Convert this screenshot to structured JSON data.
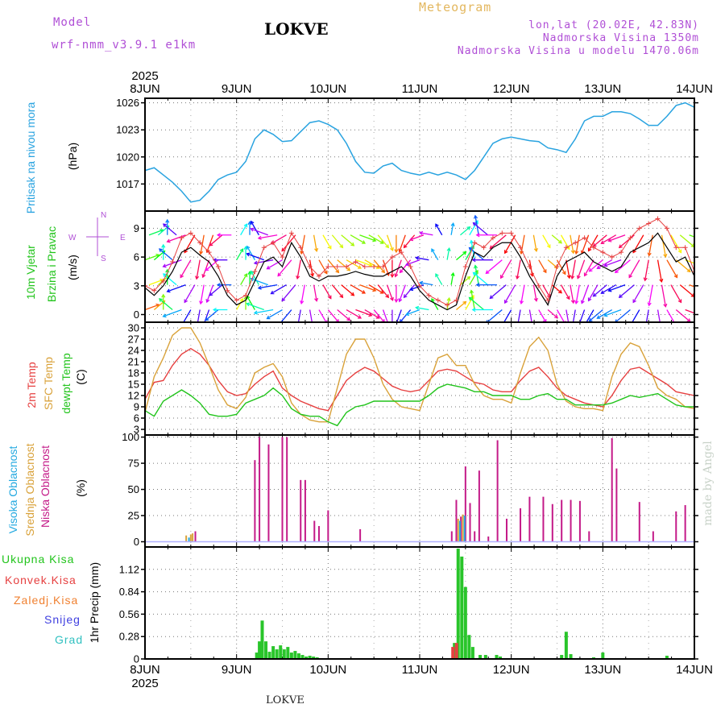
{
  "header": {
    "model_label": "Model",
    "model_name": "wrf-nmm_v3.9.1 e1km",
    "station": "LOKVE",
    "meteogram": "Meteogram",
    "lonlat": "lon,lat (20.02E, 42.83N)",
    "altitude": "Nadmorska Visina 1350m",
    "model_altitude": "Nadmorska Visina u modelu 1470.06m",
    "watermark": "made by Angel",
    "footer": "LOKVE"
  },
  "colors": {
    "pressure": "#29a3e0",
    "temp2m": "#e64040",
    "sfc_temp": "#d9a23a",
    "dewpt": "#22c41c",
    "high_cloud": "#23a9e0",
    "mid_cloud": "#d9a23a",
    "low_cloud": "#c41a88",
    "precip": "#29c52a",
    "header_purple": "#b04fd6",
    "header_orange": "#e3b75e"
  },
  "x_axis": {
    "year": "2025",
    "labels": [
      "8JUN",
      "9JUN",
      "10JUN",
      "11JUN",
      "12JUN",
      "13JUN",
      "14JUN"
    ]
  },
  "panel_labels": {
    "pressure": [
      "Pritisak na nivou mora"
    ],
    "pressure_unit": "(hPa)",
    "wind": [
      "10m Vjetar",
      "Brzina i Pravac"
    ],
    "wind_unit": "(m/s)",
    "compass": {
      "n": "N",
      "s": "S",
      "e": "E",
      "w": "W"
    },
    "temp": [
      "2m Temp",
      "SFC Temp",
      "dewpt Temp"
    ],
    "temp_unit": "(C)",
    "cloud": [
      "Visoka Oblacnost",
      "Srednja Oblacnost",
      "Niska Oblacnost"
    ],
    "cloud_unit": "(%)",
    "precip_unit": "1hr Precip (mm)",
    "precip_legend": [
      "Ukupna Kisa",
      "Konvek.Kisa",
      "Zaledj.Kisa",
      "Snijeg",
      "Grad"
    ]
  },
  "chart_data": [
    {
      "type": "line",
      "id": "pressure",
      "ylabel": "(hPa)",
      "ylim": [
        1014,
        1026.5
      ],
      "yticks": [
        1017,
        1020,
        1023,
        1026
      ],
      "x_days": [
        0,
        0.1,
        0.2,
        0.3,
        0.4,
        0.5,
        0.6,
        0.7,
        0.8,
        0.9,
        1.0,
        1.1,
        1.2,
        1.3,
        1.4,
        1.5,
        1.6,
        1.7,
        1.8,
        1.9,
        2.0,
        2.1,
        2.2,
        2.3,
        2.4,
        2.5,
        2.6,
        2.7,
        2.8,
        2.9,
        3.0,
        3.1,
        3.2,
        3.3,
        3.4,
        3.5,
        3.6,
        3.7,
        3.8,
        3.9,
        4.0,
        4.1,
        4.2,
        4.3,
        4.4,
        4.5,
        4.6,
        4.7,
        4.8,
        4.9,
        5.0,
        5.1,
        5.2,
        5.3,
        5.4,
        5.5,
        5.6,
        5.7,
        5.8,
        5.9,
        6.0
      ],
      "values": [
        1018.5,
        1018.8,
        1018.0,
        1017.2,
        1016.2,
        1015.0,
        1015.2,
        1016.2,
        1017.5,
        1018.0,
        1018.3,
        1019.5,
        1022.0,
        1023.0,
        1022.5,
        1021.7,
        1021.8,
        1022.8,
        1023.8,
        1024.0,
        1023.6,
        1023.0,
        1021.5,
        1019.5,
        1018.3,
        1018.2,
        1019.0,
        1019.3,
        1018.5,
        1018.2,
        1018.0,
        1018.3,
        1018.0,
        1018.3,
        1018.0,
        1017.5,
        1018.5,
        1020.0,
        1021.5,
        1022.0,
        1022.2,
        1022.0,
        1021.8,
        1021.7,
        1021.0,
        1020.8,
        1020.5,
        1022.0,
        1024.0,
        1024.5,
        1024.5,
        1025.0,
        1025.0,
        1024.8,
        1024.2,
        1023.5,
        1023.5,
        1024.5,
        1025.7,
        1026.0,
        1025.5
      ]
    },
    {
      "type": "line",
      "id": "wind",
      "ylabel": "(m/s)",
      "ylim": [
        -0.8,
        10.8
      ],
      "yticks": [
        0,
        3,
        6,
        9
      ],
      "x_days": [
        0,
        0.1,
        0.2,
        0.3,
        0.4,
        0.5,
        0.6,
        0.7,
        0.8,
        0.9,
        1.0,
        1.1,
        1.2,
        1.3,
        1.4,
        1.5,
        1.6,
        1.7,
        1.8,
        1.9,
        2.0,
        2.1,
        2.2,
        2.3,
        2.4,
        2.5,
        2.6,
        2.7,
        2.8,
        2.9,
        3.0,
        3.1,
        3.2,
        3.3,
        3.4,
        3.5,
        3.6,
        3.7,
        3.8,
        3.9,
        4.0,
        4.1,
        4.2,
        4.3,
        4.4,
        4.5,
        4.6,
        4.7,
        4.8,
        4.9,
        5.0,
        5.1,
        5.2,
        5.3,
        5.4,
        5.5,
        5.6,
        5.7,
        5.8,
        5.9,
        6.0
      ],
      "speed": [
        2.8,
        2.0,
        3.0,
        4.5,
        6.5,
        7.0,
        6.2,
        5.5,
        4.0,
        2.0,
        1.0,
        1.5,
        3.5,
        5.5,
        6.0,
        5.0,
        7.5,
        6.0,
        4.0,
        3.5,
        4.0,
        4.0,
        4.2,
        4.5,
        4.2,
        4.0,
        4.0,
        4.5,
        5.0,
        4.0,
        2.5,
        1.5,
        1.0,
        0.5,
        1.0,
        4.0,
        6.5,
        6.0,
        7.0,
        7.5,
        7.5,
        6.0,
        4.0,
        2.5,
        1.0,
        4.0,
        5.5,
        6.0,
        6.5,
        5.5,
        5.0,
        4.5,
        5.0,
        6.5,
        7.0,
        7.5,
        8.5,
        7.0,
        5.5,
        6.0,
        4.0
      ],
      "gust": [
        3.0,
        2.5,
        3.5,
        5.5,
        8.0,
        8.5,
        7.5,
        6.5,
        5.0,
        2.5,
        1.5,
        2.0,
        4.5,
        7.0,
        7.5,
        6.0,
        8.5,
        7.0,
        5.0,
        4.0,
        5.0,
        5.0,
        5.0,
        5.5,
        5.0,
        5.0,
        5.0,
        6.0,
        6.5,
        5.0,
        3.0,
        2.0,
        1.5,
        1.0,
        1.5,
        5.0,
        7.5,
        7.0,
        8.0,
        8.5,
        8.5,
        7.0,
        5.0,
        3.0,
        1.5,
        5.0,
        7.0,
        7.5,
        8.0,
        7.0,
        6.5,
        6.0,
        6.5,
        8.0,
        9.0,
        9.5,
        10.0,
        9.0,
        7.0,
        7.0,
        4.5
      ],
      "direction_deg": [
        20,
        40,
        90,
        140,
        200,
        240,
        260,
        250,
        220,
        180,
        60,
        90,
        120,
        160,
        190,
        210,
        230,
        260,
        280,
        300,
        310,
        320,
        330,
        340,
        330,
        310,
        290,
        270,
        250,
        230,
        200,
        170,
        120,
        80,
        40,
        60,
        100,
        140,
        180,
        220,
        240,
        260,
        280,
        300,
        320,
        300,
        280,
        260,
        250,
        240,
        220,
        210,
        200,
        220,
        240,
        260,
        280,
        300,
        320,
        340,
        350
      ]
    },
    {
      "type": "line",
      "id": "temperature",
      "ylabel": "(C)",
      "ylim": [
        1.5,
        31.5
      ],
      "yticks": [
        3,
        6,
        9,
        12,
        15,
        18,
        21,
        24,
        27,
        30
      ],
      "x_days": [
        0,
        0.1,
        0.2,
        0.3,
        0.4,
        0.5,
        0.6,
        0.7,
        0.8,
        0.9,
        1.0,
        1.1,
        1.2,
        1.3,
        1.4,
        1.5,
        1.6,
        1.7,
        1.8,
        1.9,
        2.0,
        2.1,
        2.2,
        2.3,
        2.4,
        2.5,
        2.6,
        2.7,
        2.8,
        2.9,
        3.0,
        3.1,
        3.2,
        3.3,
        3.4,
        3.5,
        3.6,
        3.7,
        3.8,
        3.9,
        4.0,
        4.1,
        4.2,
        4.3,
        4.4,
        4.5,
        4.6,
        4.7,
        4.8,
        4.9,
        5.0,
        5.1,
        5.2,
        5.3,
        5.4,
        5.5,
        5.6,
        5.7,
        5.8,
        5.9,
        6.0
      ],
      "series": [
        {
          "name": "2m Temp",
          "values": [
            11,
            15.5,
            16,
            20,
            23,
            24.5,
            23,
            20,
            16,
            13,
            12,
            12.5,
            15,
            17,
            18.5,
            14,
            12,
            10.5,
            9.5,
            8.5,
            8,
            12,
            16,
            18,
            19.5,
            18.5,
            16.5,
            14.5,
            13.5,
            13,
            13.5,
            16,
            18.5,
            19,
            18.5,
            17,
            15.5,
            15,
            13.5,
            13,
            13,
            16,
            18.5,
            19.5,
            17,
            14,
            12,
            11,
            10,
            9.5,
            9,
            12,
            16,
            19,
            19.5,
            18,
            16.5,
            15,
            13,
            12.5,
            12
          ]
        },
        {
          "name": "SFC Temp",
          "values": [
            7.5,
            17,
            22,
            28,
            30,
            30,
            26,
            20,
            13.5,
            9.5,
            8.5,
            11.5,
            18,
            19.5,
            20.5,
            17,
            10,
            7,
            5.5,
            5,
            5,
            14,
            23,
            27,
            27,
            22,
            15,
            11,
            9,
            8.5,
            8,
            15,
            22,
            23,
            20,
            20,
            15,
            12,
            11,
            11,
            10,
            18,
            25,
            27.5,
            24,
            15,
            10.5,
            9,
            8.5,
            8.5,
            8,
            17,
            23,
            26,
            25,
            20,
            14,
            12,
            11,
            9,
            8.5
          ]
        },
        {
          "name": "dewpt Temp",
          "values": [
            8,
            6.5,
            10.5,
            12,
            13.5,
            12,
            10,
            7,
            6.5,
            6.5,
            7,
            10,
            11,
            12,
            14,
            12,
            8.5,
            7,
            6.5,
            6.5,
            5,
            4,
            7.5,
            9,
            9.5,
            10.5,
            10.5,
            10.5,
            10.5,
            10.5,
            10.5,
            12,
            14,
            15,
            14.5,
            14,
            13,
            13,
            12,
            12,
            12,
            11,
            11,
            12,
            12.5,
            11,
            11,
            9.5,
            9.5,
            9.5,
            9.5,
            10,
            11,
            12,
            11.5,
            12,
            12.5,
            11,
            9.5,
            9,
            9
          ]
        }
      ]
    },
    {
      "type": "bar",
      "id": "cloud",
      "ylabel": "(%)",
      "ylim": [
        -5,
        102
      ],
      "yticks": [
        0,
        25,
        50,
        75,
        100
      ],
      "series": [
        {
          "name": "Niska Oblacnost",
          "x_days": [
            0.55,
            1.2,
            1.25,
            1.35,
            1.5,
            1.55,
            1.7,
            1.75,
            1.85,
            1.9,
            2.0,
            2.35,
            3.35,
            3.4,
            3.45,
            3.5,
            3.55,
            3.6,
            3.65,
            3.75,
            3.85,
            3.95,
            4.1,
            4.2,
            4.35,
            4.45,
            4.55,
            4.65,
            4.75,
            4.85,
            5.1,
            5.15,
            5.4,
            5.55,
            5.8,
            5.9
          ],
          "values": [
            10,
            78,
            100,
            93,
            100,
            100,
            59,
            59,
            20,
            15,
            30,
            12,
            10,
            40,
            24,
            72,
            37,
            10,
            68,
            5,
            97,
            22,
            32,
            43,
            43,
            36,
            40,
            40,
            39,
            10,
            99,
            70,
            38,
            10,
            29,
            35
          ]
        },
        {
          "name": "Srednja Oblacnost",
          "x_days": [
            0.45,
            0.5,
            0.52,
            3.42,
            3.47
          ],
          "values": [
            6,
            7,
            8,
            22,
            26
          ]
        },
        {
          "name": "Visoka Oblacnost",
          "x_days": [
            0.48,
            3.44,
            3.49
          ],
          "values": [
            4,
            20,
            25
          ]
        }
      ]
    },
    {
      "type": "bar",
      "id": "precip",
      "ylabel": "1hr Precip (mm)",
      "ylim": [
        0,
        1.4
      ],
      "yticks": [
        0,
        0.28,
        0.56,
        0.84,
        1.12
      ],
      "series": [
        {
          "name": "Ukupna Kisa",
          "x_days": [
            1.22,
            1.25,
            1.28,
            1.32,
            1.36,
            1.4,
            1.44,
            1.48,
            1.52,
            1.56,
            1.6,
            1.64,
            1.68,
            1.72,
            1.76,
            1.8,
            1.84,
            1.88,
            3.38,
            3.42,
            3.46,
            3.5,
            3.54,
            3.58,
            3.66,
            3.72,
            3.84,
            3.88,
            4.55,
            4.6,
            4.65,
            4.9,
            5.0,
            5.7
          ],
          "values": [
            0.08,
            0.22,
            0.48,
            0.22,
            0.09,
            0.16,
            0.12,
            0.17,
            0.12,
            0.15,
            0.08,
            0.1,
            0.07,
            0.05,
            0.03,
            0.04,
            0.03,
            0.02,
            0.2,
            1.38,
            1.28,
            0.9,
            0.3,
            0.15,
            0.05,
            0.05,
            0.05,
            0.03,
            0.05,
            0.34,
            0.06,
            0.02,
            0.08,
            0.04
          ]
        },
        {
          "name": "Konvek.Kisa",
          "x_days": [
            3.38,
            3.42
          ],
          "values": [
            0.15,
            0.2
          ]
        }
      ]
    }
  ]
}
